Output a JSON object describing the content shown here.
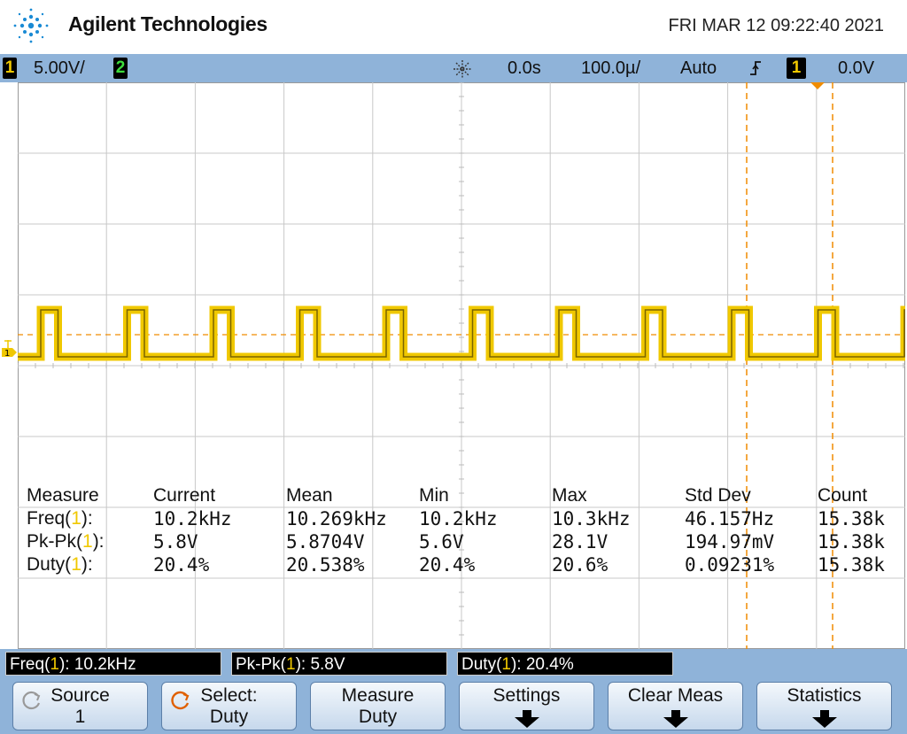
{
  "header": {
    "brand": "Agilent Technologies",
    "datetime": "FRI MAR 12 09:22:40 2021"
  },
  "status": {
    "ch1_number": "1",
    "ch1_scale": "5.00V/",
    "ch2_number": "2",
    "delay": "0.0s",
    "timebase": "100.0µ/",
    "trigger_mode": "Auto",
    "trigger_source": "1",
    "trigger_level": "0.0V"
  },
  "measurements": {
    "headers": [
      "Measure",
      "Current",
      "Mean",
      "Min",
      "Max",
      "Std Dev",
      "Count"
    ],
    "rows": [
      {
        "label_pre": "Freq(",
        "ch": "1",
        "label_post": "):",
        "values": [
          "10.2kHz",
          "10.269kHz",
          "10.2kHz",
          "10.3kHz",
          "46.157Hz",
          "15.38k"
        ]
      },
      {
        "label_pre": "Pk-Pk(",
        "ch": "1",
        "label_post": "):",
        "values": [
          "5.8V",
          "5.8704V",
          "5.6V",
          "28.1V",
          "194.97mV",
          "15.38k"
        ]
      },
      {
        "label_pre": "Duty(",
        "ch": "1",
        "label_post": "):",
        "values": [
          "20.4%",
          "20.538%",
          "20.4%",
          "20.6%",
          "0.09231%",
          "15.38k"
        ]
      }
    ]
  },
  "meas_bar": [
    {
      "pre": "Freq(",
      "ch": "1",
      "post": "): 10.2kHz"
    },
    {
      "pre": "Pk-Pk(",
      "ch": "1",
      "post": "): 5.8V"
    },
    {
      "pre": "Duty(",
      "ch": "1",
      "post": "): 20.4%"
    }
  ],
  "softkeys": [
    {
      "line1": "Source",
      "line2": "1"
    },
    {
      "line1": "Select:",
      "line2": "Duty"
    },
    {
      "line1": "Measure",
      "line2": "Duty"
    },
    {
      "line1": "Settings",
      "line2": ""
    },
    {
      "line1": "Clear Meas",
      "line2": ""
    },
    {
      "line1": "Statistics",
      "line2": ""
    }
  ],
  "ground_marker": "1",
  "colors": {
    "trace": "#f0c800",
    "grid": "#c8c8c8",
    "cursor": "#f08c00",
    "bar": "#8fb3d9"
  }
}
